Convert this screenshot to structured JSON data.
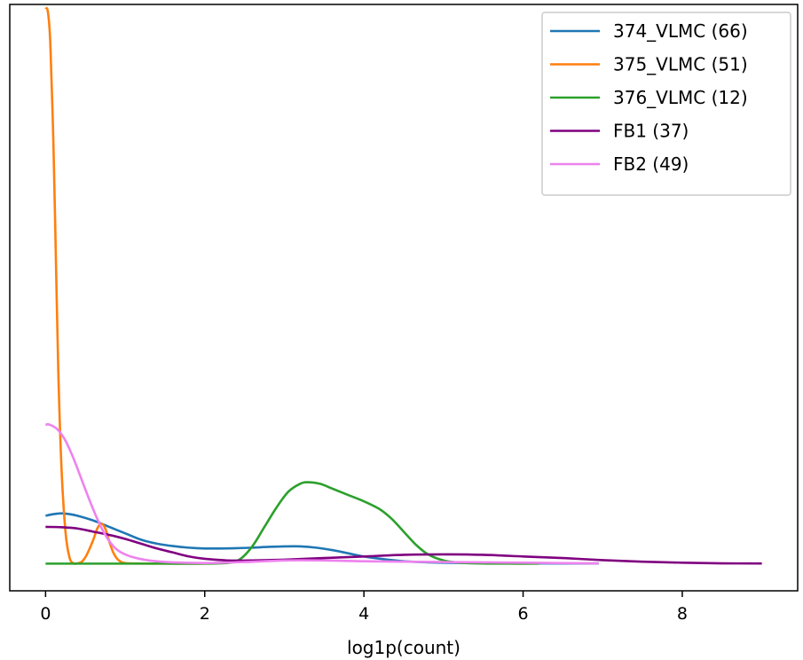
{
  "chart_data": {
    "type": "line",
    "xlabel": "log1p(count)",
    "ylabel": "",
    "title": "",
    "xlim": [
      -0.45,
      9.45
    ],
    "ylim": [
      -0.17,
      3.5
    ],
    "x_ticks": [
      0,
      2,
      4,
      6,
      8
    ],
    "y_ticks_visible": false,
    "grid": false,
    "legend_position": "top-right",
    "series": [
      {
        "name": "374_VLMC (66)",
        "color": "#1f77b4",
        "x": [
          0,
          0.1,
          0.2,
          0.3,
          0.4,
          0.6,
          0.8,
          1.0,
          1.2,
          1.4,
          1.6,
          1.8,
          2.0,
          2.2,
          2.4,
          2.6,
          2.8,
          3.0,
          3.2,
          3.4,
          3.6,
          3.8,
          4.0,
          4.3,
          4.6,
          5.0,
          5.5,
          6.0,
          6.5,
          6.95
        ],
        "y": [
          0.3,
          0.31,
          0.315,
          0.31,
          0.3,
          0.27,
          0.23,
          0.19,
          0.15,
          0.125,
          0.11,
          0.1,
          0.095,
          0.095,
          0.097,
          0.1,
          0.105,
          0.108,
          0.108,
          0.1,
          0.085,
          0.065,
          0.045,
          0.025,
          0.012,
          0.006,
          0.003,
          0.002,
          0.001,
          0.001
        ]
      },
      {
        "name": "375_VLMC (51)",
        "color": "#ff7f0e",
        "x": [
          0,
          0.03,
          0.06,
          0.1,
          0.13,
          0.16,
          0.2,
          0.25,
          0.3,
          0.35,
          0.4,
          0.45,
          0.5,
          0.55,
          0.6,
          0.65,
          0.7,
          0.75,
          0.8,
          0.85,
          0.9,
          0.95,
          1.0,
          1.1,
          1.3,
          1.6,
          2.0
        ],
        "y": [
          3.48,
          3.45,
          3.25,
          2.6,
          1.9,
          1.2,
          0.6,
          0.2,
          0.04,
          0.002,
          0.002,
          0.01,
          0.04,
          0.09,
          0.15,
          0.22,
          0.25,
          0.22,
          0.14,
          0.07,
          0.03,
          0.01,
          0.003,
          0.001,
          0,
          0,
          0
        ]
      },
      {
        "name": "376_VLMC (12)",
        "color": "#2ca02c",
        "x": [
          0,
          0.5,
          1.0,
          1.5,
          2.0,
          2.3,
          2.45,
          2.6,
          2.75,
          2.9,
          3.05,
          3.2,
          3.3,
          3.45,
          3.6,
          3.8,
          4.0,
          4.2,
          4.35,
          4.5,
          4.65,
          4.8,
          5.0,
          5.2,
          5.5,
          5.8,
          6.2
        ],
        "y": [
          0,
          0,
          0,
          0,
          0,
          0.005,
          0.03,
          0.11,
          0.23,
          0.35,
          0.45,
          0.5,
          0.51,
          0.5,
          0.47,
          0.43,
          0.39,
          0.34,
          0.28,
          0.2,
          0.12,
          0.06,
          0.02,
          0.006,
          0.001,
          0,
          0
        ]
      },
      {
        "name": "FB1 (37)",
        "color": "#800080",
        "x": [
          0,
          0.2,
          0.4,
          0.6,
          0.8,
          1.0,
          1.2,
          1.4,
          1.6,
          1.8,
          2.0,
          2.3,
          2.6,
          3.0,
          3.5,
          4.0,
          4.5,
          5.0,
          5.5,
          6.0,
          6.5,
          7.0,
          7.5,
          8.0,
          8.5,
          9.0
        ],
        "y": [
          0.23,
          0.228,
          0.22,
          0.2,
          0.18,
          0.155,
          0.125,
          0.095,
          0.07,
          0.045,
          0.03,
          0.02,
          0.02,
          0.025,
          0.035,
          0.045,
          0.055,
          0.058,
          0.055,
          0.045,
          0.035,
          0.022,
          0.012,
          0.006,
          0.002,
          0.001
        ]
      },
      {
        "name": "FB2 (49)",
        "color": "#ee82ee",
        "x": [
          0,
          0.05,
          0.15,
          0.25,
          0.35,
          0.45,
          0.55,
          0.65,
          0.75,
          0.85,
          0.95,
          1.1,
          1.3,
          1.6,
          2.0,
          2.5,
          3.0,
          3.5,
          4.0,
          4.5,
          5.0,
          5.5,
          6.0,
          6.5,
          6.95
        ],
        "y": [
          0.87,
          0.87,
          0.84,
          0.77,
          0.66,
          0.53,
          0.4,
          0.28,
          0.18,
          0.11,
          0.07,
          0.04,
          0.02,
          0.008,
          0.004,
          0.01,
          0.02,
          0.02,
          0.015,
          0.012,
          0.01,
          0.008,
          0.006,
          0.003,
          0.002
        ]
      }
    ]
  }
}
